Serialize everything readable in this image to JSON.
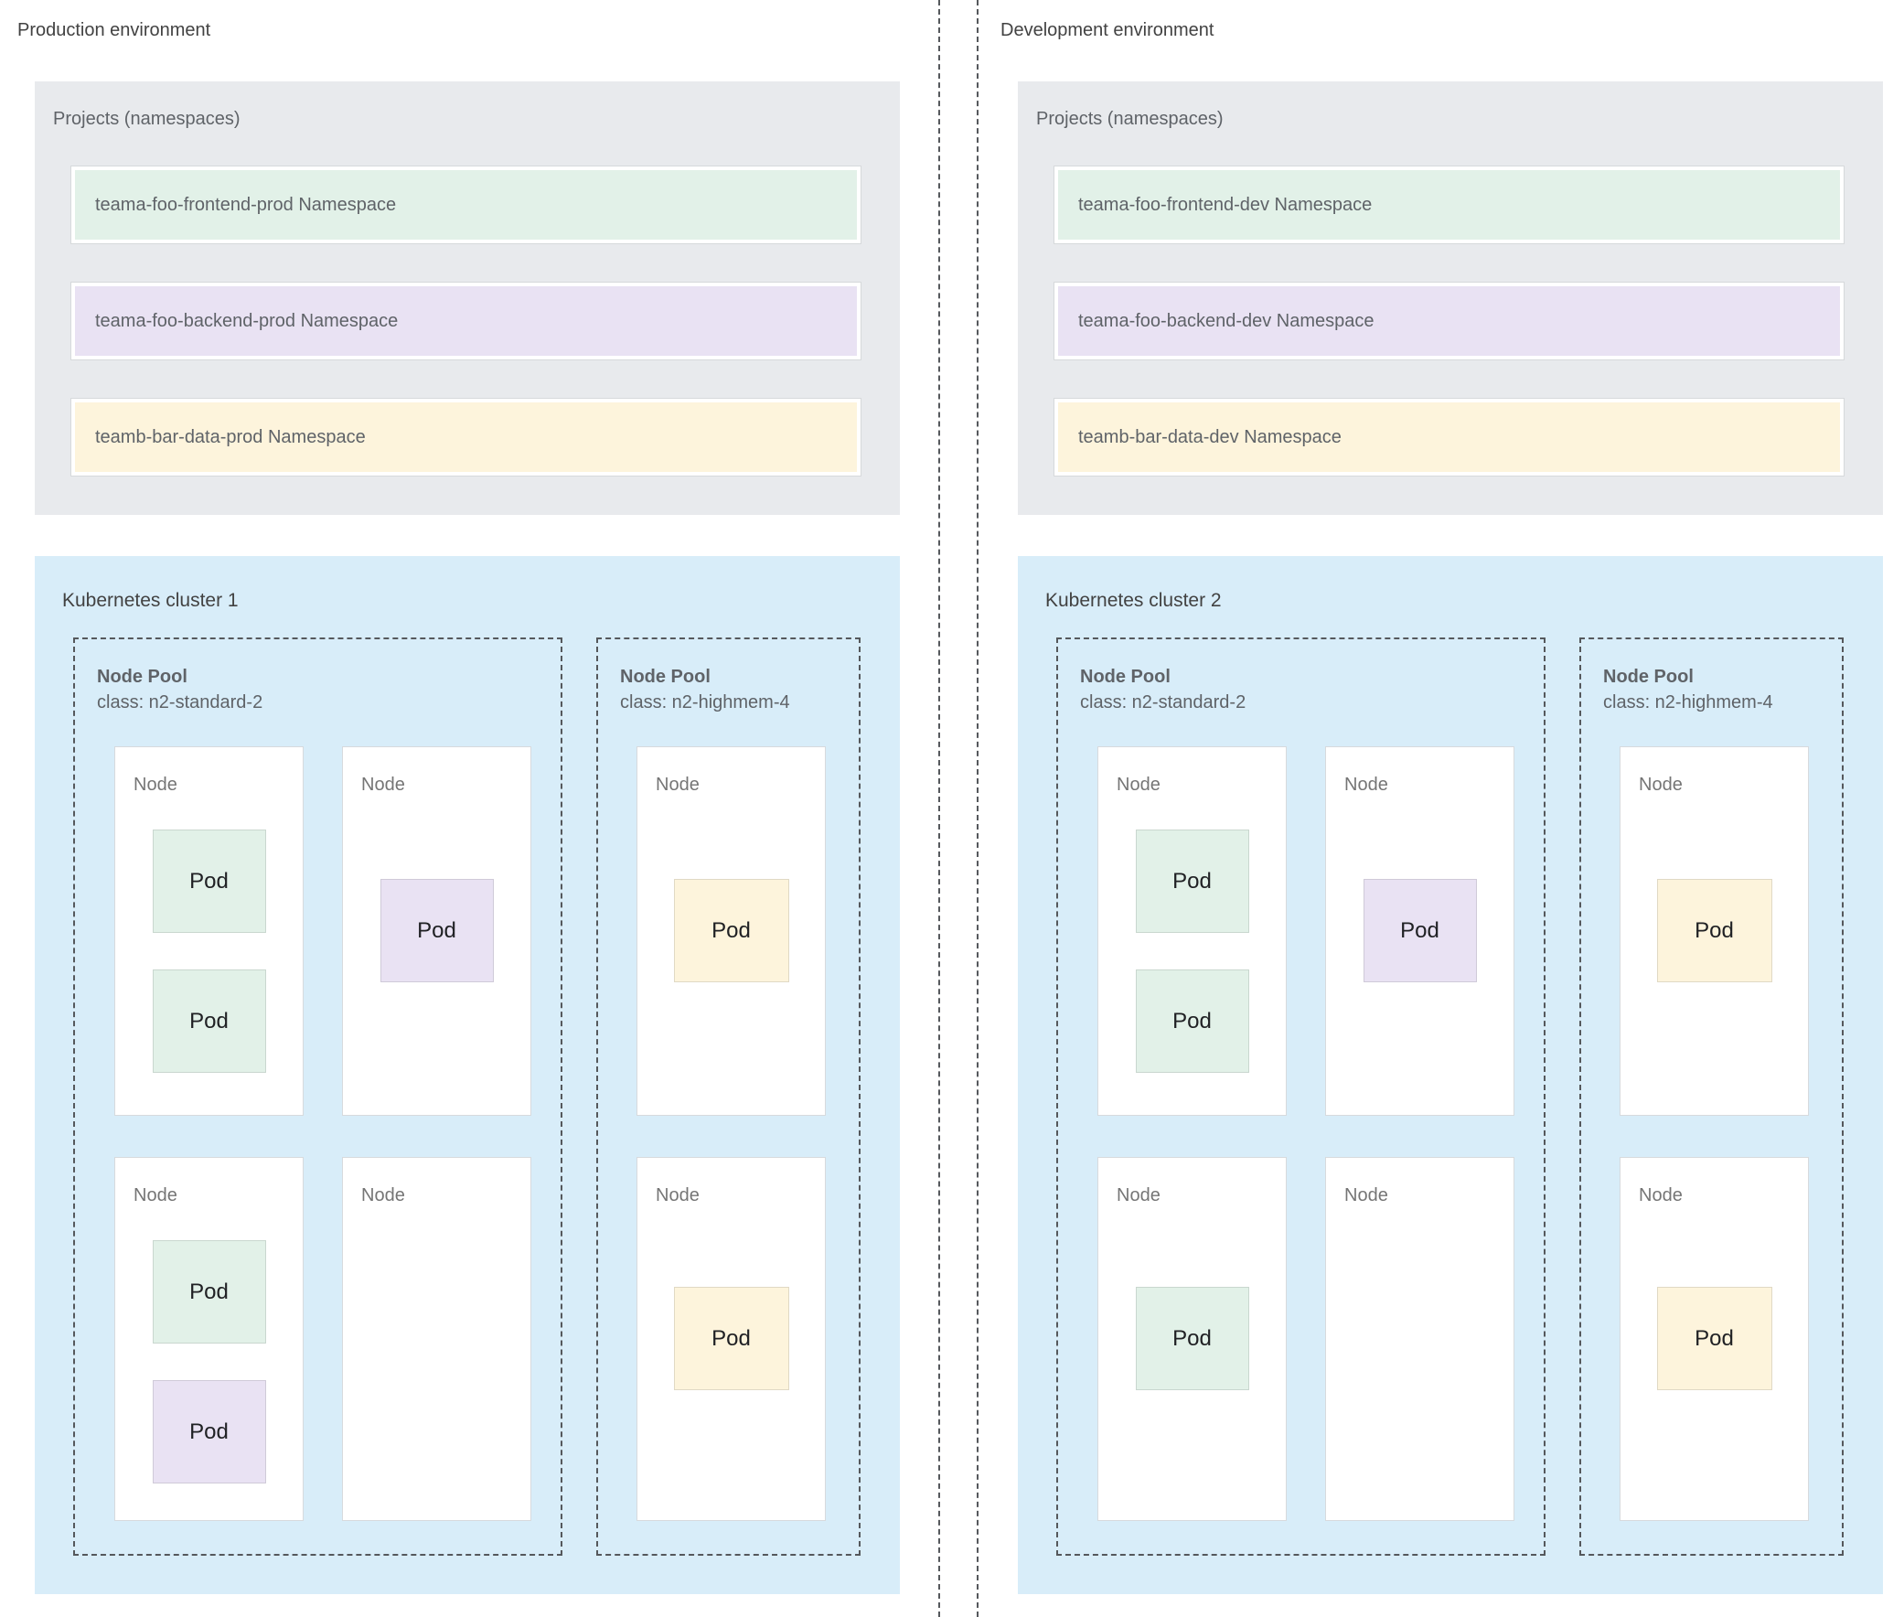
{
  "colors": {
    "projects-bg": "#E8EAED",
    "cluster-bg": "#D8EDF9",
    "node-bg": "#FFFFFF",
    "node-border": "#D7DADD",
    "green": "#E2F1E8",
    "purple": "#E9E2F3",
    "yellow": "#FDF4DC",
    "dash": "#55585C",
    "text-muted": "#5F6368",
    "text-dark": "#424242",
    "text-node": "#757575",
    "text-pod": "#202124"
  },
  "labels": {
    "node_pool": "Node Pool",
    "node": "Node",
    "pod": "Pod"
  },
  "environments": [
    {
      "title": "Production environment",
      "projects": {
        "title": "Projects (namespaces)",
        "namespaces": [
          {
            "name": "teama-foo-frontend-prod Namespace",
            "color": "green"
          },
          {
            "name": "teama-foo-backend-prod Namespace",
            "color": "purple"
          },
          {
            "name": "teamb-bar-data-prod Namespace",
            "color": "yellow"
          }
        ]
      },
      "cluster": {
        "title": "Kubernetes cluster 1",
        "node_pools": [
          {
            "title": "Node Pool",
            "class": "class: n2-standard-2"
          },
          {
            "title": "Node Pool",
            "class": "class: n2-highmem-4"
          }
        ]
      }
    },
    {
      "title": "Development environment",
      "projects": {
        "title": "Projects (namespaces)",
        "namespaces": [
          {
            "name": "teama-foo-frontend-dev Namespace",
            "color": "green"
          },
          {
            "name": "teama-foo-backend-dev Namespace",
            "color": "purple"
          },
          {
            "name": "teamb-bar-data-dev Namespace",
            "color": "yellow"
          }
        ]
      },
      "cluster": {
        "title": "Kubernetes cluster 2",
        "node_pools": [
          {
            "title": "Node Pool",
            "class": "class: n2-standard-2"
          },
          {
            "title": "Node Pool",
            "class": "class: n2-highmem-4"
          }
        ]
      }
    }
  ]
}
